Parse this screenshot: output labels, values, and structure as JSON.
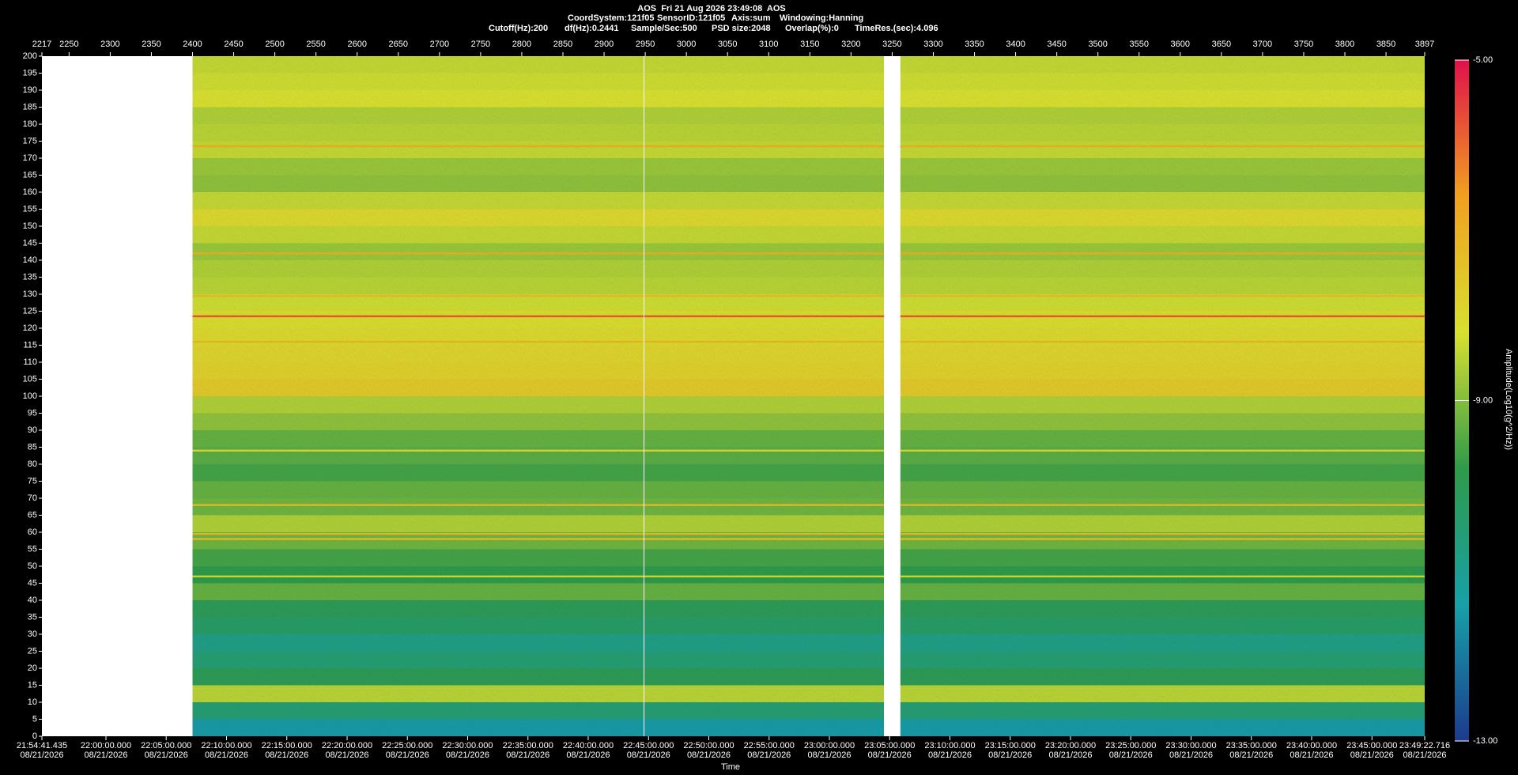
{
  "chart_data": {
    "type": "spectrogram",
    "header": [
      [
        "AOS  Fri 21 Aug 2026 23:49:08  AOS"
      ],
      [
        "CoordSystem:121f05",
        "SensorID:121f05",
        "Axis:sum",
        "Windowing:Hanning"
      ],
      [
        "Cutoff(Hz):200",
        "df(Hz):0.2441",
        "Sample/Sec:500",
        "PSD size:2048",
        "Overlap(%):0",
        "TimeRes.(sec):4.096"
      ]
    ],
    "x_label": "Time",
    "colorbar_label": "Amplitude(Log10(g^2/Hz))",
    "xlim": [
      2217,
      3897
    ],
    "xticks": [
      2217,
      2250,
      2300,
      2350,
      2400,
      2450,
      2500,
      2550,
      2600,
      2650,
      2700,
      2750,
      2800,
      2850,
      2900,
      2950,
      3000,
      3050,
      3100,
      3150,
      3200,
      3250,
      3300,
      3350,
      3400,
      3450,
      3500,
      3550,
      3600,
      3650,
      3700,
      3750,
      3800,
      3850,
      3897
    ],
    "time_ticks": [
      {
        "value": 2217,
        "label": "21:54:41.435",
        "date": "08/21/2026"
      },
      {
        "value": 2294.8,
        "label": "22:00:00.000",
        "date": "08/21/2026"
      },
      {
        "value": 2368.0,
        "label": "22:05:00.000",
        "date": "08/21/2026"
      },
      {
        "value": 2441.3,
        "label": "22:10:00.000",
        "date": "08/21/2026"
      },
      {
        "value": 2514.5,
        "label": "22:15:00.000",
        "date": "08/21/2026"
      },
      {
        "value": 2587.8,
        "label": "22:20:00.000",
        "date": "08/21/2026"
      },
      {
        "value": 2661.0,
        "label": "22:25:00.000",
        "date": "08/21/2026"
      },
      {
        "value": 2734.2,
        "label": "22:30:00.000",
        "date": "08/21/2026"
      },
      {
        "value": 2807.5,
        "label": "22:35:00.000",
        "date": "08/21/2026"
      },
      {
        "value": 2880.7,
        "label": "22:40:00.000",
        "date": "08/21/2026"
      },
      {
        "value": 2954.0,
        "label": "22:45:00.000",
        "date": "08/21/2026"
      },
      {
        "value": 3027.2,
        "label": "22:50:00.000",
        "date": "08/21/2026"
      },
      {
        "value": 3100.5,
        "label": "22:55:00.000",
        "date": "08/21/2026"
      },
      {
        "value": 3173.7,
        "label": "23:00:00.000",
        "date": "08/21/2026"
      },
      {
        "value": 3246.9,
        "label": "23:05:00.000",
        "date": "08/21/2026"
      },
      {
        "value": 3320.2,
        "label": "23:10:00.000",
        "date": "08/21/2026"
      },
      {
        "value": 3393.4,
        "label": "23:15:00.000",
        "date": "08/21/2026"
      },
      {
        "value": 3466.7,
        "label": "23:20:00.000",
        "date": "08/21/2026"
      },
      {
        "value": 3539.9,
        "label": "23:25:00.000",
        "date": "08/21/2026"
      },
      {
        "value": 3613.2,
        "label": "23:30:00.000",
        "date": "08/21/2026"
      },
      {
        "value": 3686.4,
        "label": "23:35:00.000",
        "date": "08/21/2026"
      },
      {
        "value": 3759.6,
        "label": "23:40:00.000",
        "date": "08/21/2026"
      },
      {
        "value": 3832.9,
        "label": "23:45:00.000",
        "date": "08/21/2026"
      },
      {
        "value": 3897,
        "label": "23:49:22.716",
        "date": "08/21/2026"
      }
    ],
    "ylim": [
      0,
      200
    ],
    "yticks": [
      0,
      5,
      10,
      15,
      20,
      25,
      30,
      35,
      40,
      45,
      50,
      55,
      60,
      65,
      70,
      75,
      80,
      85,
      90,
      95,
      100,
      105,
      110,
      115,
      120,
      125,
      130,
      135,
      140,
      145,
      150,
      155,
      160,
      165,
      170,
      175,
      180,
      185,
      190,
      195,
      200
    ],
    "segments": [
      [
        2400,
        2948
      ],
      [
        2949,
        3240
      ],
      [
        3260,
        3897
      ]
    ],
    "bins": [
      0,
      5,
      10,
      15,
      20,
      25,
      30,
      35,
      40,
      45,
      50,
      55,
      60,
      65,
      70,
      75,
      80,
      85,
      90,
      95,
      100,
      105,
      110,
      115,
      120,
      125,
      130,
      135,
      140,
      145,
      150,
      155,
      160,
      165,
      170,
      175,
      180,
      185,
      190,
      195,
      200
    ],
    "amplitudes": [
      -11.5,
      -10.5,
      -8.5,
      -10,
      -10.5,
      -10.8,
      -10.3,
      -10,
      -9.3,
      -9.8,
      -9.6,
      -9.2,
      -8.6,
      -9.2,
      -9.3,
      -9.6,
      -9.4,
      -9.3,
      -8.9,
      -8.6,
      -7.6,
      -7.8,
      -7.9,
      -8.0,
      -8.1,
      -8.3,
      -8.5,
      -8.6,
      -8.8,
      -8.4,
      -8.0,
      -8.4,
      -8.9,
      -8.8,
      -8.4,
      -8.5,
      -8.6,
      -8.2,
      -8.3,
      -8.4
    ],
    "lines": {
      "freqs": [
        173.5,
        142,
        129.5,
        123.5,
        116,
        84,
        68,
        59.5,
        58,
        47
      ],
      "values": [
        -7,
        -7,
        -7.3,
        -5.8,
        -7.2,
        -8,
        -7.3,
        -7.2,
        -7.4,
        -8.3
      ]
    },
    "clim": [
      -13,
      -5
    ],
    "colorscale": [
      "#1c3a8e",
      "#17a0a8",
      "#2f9a4a",
      "#d8e030",
      "#f0a020",
      "#e0104a"
    ],
    "cticks": [
      {
        "value": -5,
        "label": "-5.00"
      },
      {
        "value": -9,
        "label": "-9.00"
      },
      {
        "value": -13,
        "label": "-13.00"
      }
    ]
  }
}
